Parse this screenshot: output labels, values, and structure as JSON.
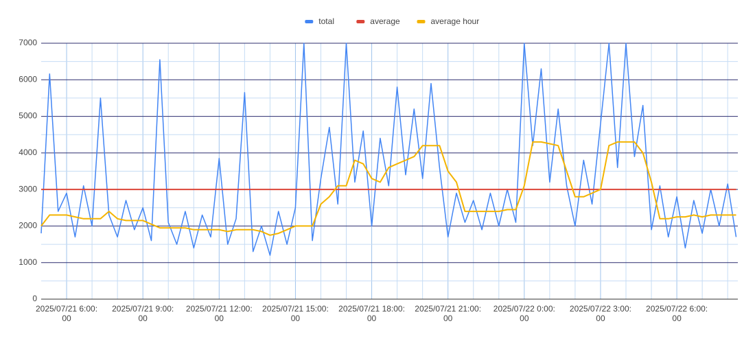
{
  "chart_data": {
    "type": "line",
    "x": [
      "2025/07/21 5:00:00",
      "2025/07/21 5:20:00",
      "2025/07/21 5:40:00",
      "2025/07/21 6:00:00",
      "2025/07/21 6:20:00",
      "2025/07/21 6:40:00",
      "2025/07/21 7:00:00",
      "2025/07/21 7:20:00",
      "2025/07/21 7:40:00",
      "2025/07/21 8:00:00",
      "2025/07/21 8:20:00",
      "2025/07/21 8:40:00",
      "2025/07/21 9:00:00",
      "2025/07/21 9:20:00",
      "2025/07/21 9:40:00",
      "2025/07/21 10:00:00",
      "2025/07/21 10:20:00",
      "2025/07/21 10:40:00",
      "2025/07/21 11:00:00",
      "2025/07/21 11:20:00",
      "2025/07/21 11:40:00",
      "2025/07/21 12:00:00",
      "2025/07/21 12:20:00",
      "2025/07/21 12:40:00",
      "2025/07/21 13:00:00",
      "2025/07/21 13:20:00",
      "2025/07/21 13:40:00",
      "2025/07/21 14:00:00",
      "2025/07/21 14:20:00",
      "2025/07/21 14:40:00",
      "2025/07/21 15:00:00",
      "2025/07/21 15:20:00",
      "2025/07/21 15:40:00",
      "2025/07/21 16:00:00",
      "2025/07/21 16:20:00",
      "2025/07/21 16:40:00",
      "2025/07/21 17:00:00",
      "2025/07/21 17:20:00",
      "2025/07/21 17:40:00",
      "2025/07/21 18:00:00",
      "2025/07/21 18:20:00",
      "2025/07/21 18:40:00",
      "2025/07/21 19:00:00",
      "2025/07/21 19:20:00",
      "2025/07/21 19:40:00",
      "2025/07/21 20:00:00",
      "2025/07/21 20:20:00",
      "2025/07/21 20:40:00",
      "2025/07/21 21:00:00",
      "2025/07/21 21:20:00",
      "2025/07/21 21:40:00",
      "2025/07/21 22:00:00",
      "2025/07/21 22:20:00",
      "2025/07/21 22:40:00",
      "2025/07/21 23:00:00",
      "2025/07/21 23:20:00",
      "2025/07/21 23:40:00",
      "2025/07/22 0:00:00",
      "2025/07/22 0:20:00",
      "2025/07/22 0:40:00",
      "2025/07/22 1:00:00",
      "2025/07/22 1:20:00",
      "2025/07/22 1:40:00",
      "2025/07/22 2:00:00",
      "2025/07/22 2:20:00",
      "2025/07/22 2:40:00",
      "2025/07/22 3:00:00",
      "2025/07/22 3:20:00",
      "2025/07/22 3:40:00",
      "2025/07/22 4:00:00",
      "2025/07/22 4:20:00",
      "2025/07/22 4:40:00",
      "2025/07/22 5:00:00",
      "2025/07/22 5:20:00",
      "2025/07/22 5:40:00",
      "2025/07/22 6:00:00",
      "2025/07/22 6:20:00",
      "2025/07/22 6:40:00",
      "2025/07/22 7:00:00",
      "2025/07/22 7:20:00",
      "2025/07/22 7:40:00",
      "2025/07/22 8:00:00",
      "2025/07/22 8:20:00"
    ],
    "series": [
      {
        "name": "total",
        "color": "#4285f4",
        "values": [
          1800,
          6160,
          2400,
          2900,
          1700,
          3100,
          2000,
          5500,
          2300,
          1700,
          2700,
          1900,
          2500,
          1600,
          6550,
          2100,
          1500,
          2400,
          1400,
          2300,
          1700,
          3850,
          1500,
          2200,
          5650,
          1300,
          2000,
          1200,
          2400,
          1500,
          2500,
          7000,
          1600,
          3300,
          4700,
          2600,
          7000,
          3200,
          4600,
          2000,
          4400,
          3100,
          5800,
          3400,
          5200,
          3300,
          5900,
          3600,
          1700,
          2900,
          2100,
          2700,
          1900,
          2900,
          2000,
          3000,
          2100,
          7000,
          4200,
          6300,
          3200,
          5200,
          3100,
          2000,
          3800,
          2600,
          4800,
          7000,
          3600,
          7000,
          3900,
          5300,
          1900,
          3100,
          1700,
          2800,
          1400,
          2700,
          1800,
          3000,
          2000,
          3150,
          1700
        ]
      },
      {
        "name": "average",
        "color": "#db4437",
        "values": [
          3000,
          3000,
          3000,
          3000,
          3000,
          3000,
          3000,
          3000,
          3000,
          3000,
          3000,
          3000,
          3000,
          3000,
          3000,
          3000,
          3000,
          3000,
          3000,
          3000,
          3000,
          3000,
          3000,
          3000,
          3000,
          3000,
          3000,
          3000,
          3000,
          3000,
          3000,
          3000,
          3000,
          3000,
          3000,
          3000,
          3000,
          3000,
          3000,
          3000,
          3000,
          3000,
          3000,
          3000,
          3000,
          3000,
          3000,
          3000,
          3000,
          3000,
          3000,
          3000,
          3000,
          3000,
          3000,
          3000,
          3000,
          3000,
          3000,
          3000,
          3000,
          3000,
          3000,
          3000,
          3000,
          3000,
          3000,
          3000,
          3000,
          3000,
          3000,
          3000,
          3000,
          3000,
          3000,
          3000,
          3000,
          3000,
          3000,
          3000,
          3000,
          3000,
          3000
        ]
      },
      {
        "name": "average hour",
        "color": "#f4b400",
        "values": [
          2000,
          2300,
          2300,
          2300,
          2250,
          2200,
          2200,
          2200,
          2400,
          2200,
          2150,
          2150,
          2150,
          2050,
          1950,
          1950,
          1950,
          1950,
          1900,
          1900,
          1900,
          1900,
          1850,
          1900,
          1900,
          1900,
          1850,
          1750,
          1800,
          1900,
          2000,
          2000,
          2000,
          2600,
          2800,
          3100,
          3100,
          3800,
          3700,
          3300,
          3200,
          3600,
          3700,
          3800,
          3900,
          4200,
          4200,
          4200,
          3500,
          3200,
          2400,
          2400,
          2400,
          2400,
          2400,
          2450,
          2450,
          3100,
          4300,
          4300,
          4250,
          4200,
          3500,
          2800,
          2800,
          2900,
          3000,
          4200,
          4300,
          4300,
          4300,
          4000,
          3200,
          2200,
          2200,
          2250,
          2250,
          2300,
          2250,
          2300,
          2300,
          2300,
          2300
        ]
      }
    ],
    "xlim": [
      "2025/07/21 5:00:00",
      "2025/07/22 8:24:00"
    ],
    "xticks": [
      "2025/07/21 6:00:00",
      "2025/07/21 9:00:00",
      "2025/07/21 12:00:00",
      "2025/07/21 15:00:00",
      "2025/07/21 18:00:00",
      "2025/07/21 21:00:00",
      "2025/07/22 0:00:00",
      "2025/07/22 3:00:00",
      "2025/07/22 6:00:00"
    ],
    "ylim": [
      0,
      7000
    ],
    "yticks": [
      0,
      1000,
      2000,
      3000,
      4000,
      5000,
      6000,
      7000
    ],
    "grid": true,
    "legend": "top"
  }
}
